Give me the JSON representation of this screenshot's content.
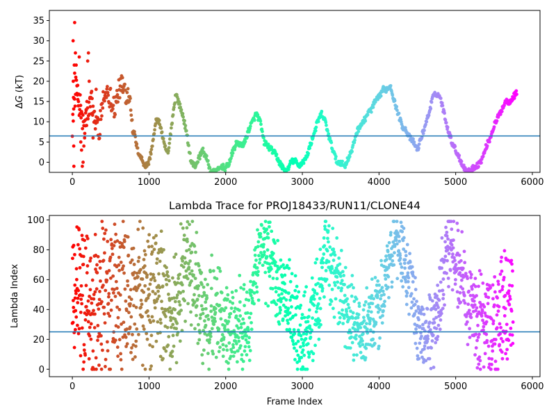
{
  "chart_data": [
    {
      "type": "scatter",
      "title": "",
      "xlabel": "",
      "ylabel_italic": "G",
      "ylabel_prefix": "Δ",
      "ylabel_suffix": " (kT)",
      "xlim": [
        -300,
        6100
      ],
      "ylim": [
        -2.5,
        37.5
      ],
      "xticks": [
        0,
        1000,
        2000,
        3000,
        4000,
        5000,
        6000
      ],
      "yticks": [
        0,
        5,
        10,
        15,
        20,
        25,
        30,
        35
      ],
      "hline": 6.5,
      "color_map": "rainbow (colored by frame index: red at 0 → purple at end)",
      "frames": 5800,
      "trace_keypoints": [
        [
          0,
          10
        ],
        [
          50,
          18
        ],
        [
          100,
          14
        ],
        [
          150,
          8
        ],
        [
          200,
          12
        ],
        [
          250,
          15
        ],
        [
          300,
          10
        ],
        [
          350,
          8
        ],
        [
          400,
          15
        ],
        [
          450,
          18
        ],
        [
          500,
          16
        ],
        [
          550,
          14
        ],
        [
          600,
          17
        ],
        [
          650,
          19
        ],
        [
          700,
          17
        ],
        [
          750,
          16
        ],
        [
          800,
          8
        ],
        [
          850,
          3
        ],
        [
          900,
          1
        ],
        [
          950,
          -1
        ],
        [
          1000,
          0
        ],
        [
          1050,
          5
        ],
        [
          1100,
          11
        ],
        [
          1150,
          9
        ],
        [
          1200,
          4
        ],
        [
          1250,
          2
        ],
        [
          1300,
          10
        ],
        [
          1350,
          17
        ],
        [
          1400,
          14
        ],
        [
          1450,
          11
        ],
        [
          1500,
          6
        ],
        [
          1550,
          0
        ],
        [
          1600,
          -1
        ],
        [
          1650,
          1
        ],
        [
          1700,
          3
        ],
        [
          1750,
          1
        ],
        [
          1800,
          -2
        ],
        [
          1850,
          -2.5
        ],
        [
          1900,
          -2
        ],
        [
          1950,
          -1
        ],
        [
          2000,
          -1.5
        ],
        [
          2050,
          0
        ],
        [
          2100,
          3
        ],
        [
          2150,
          5
        ],
        [
          2200,
          4
        ],
        [
          2250,
          5
        ],
        [
          2300,
          8
        ],
        [
          2350,
          10
        ],
        [
          2400,
          12
        ],
        [
          2450,
          10
        ],
        [
          2500,
          5
        ],
        [
          2550,
          4
        ],
        [
          2600,
          3
        ],
        [
          2650,
          2
        ],
        [
          2700,
          0
        ],
        [
          2750,
          -1.5
        ],
        [
          2800,
          -2.5
        ],
        [
          2850,
          0
        ],
        [
          2900,
          0.5
        ],
        [
          2950,
          -1
        ],
        [
          3000,
          0
        ],
        [
          3050,
          1
        ],
        [
          3100,
          4
        ],
        [
          3150,
          7
        ],
        [
          3200,
          10
        ],
        [
          3250,
          12
        ],
        [
          3300,
          10
        ],
        [
          3350,
          6
        ],
        [
          3400,
          3
        ],
        [
          3450,
          0
        ],
        [
          3500,
          0
        ],
        [
          3550,
          -1
        ],
        [
          3600,
          1
        ],
        [
          3650,
          3
        ],
        [
          3700,
          7
        ],
        [
          3750,
          9
        ],
        [
          3800,
          10
        ],
        [
          3850,
          12
        ],
        [
          3900,
          13
        ],
        [
          3950,
          15
        ],
        [
          4000,
          16
        ],
        [
          4050,
          18
        ],
        [
          4100,
          18
        ],
        [
          4150,
          19
        ],
        [
          4200,
          15
        ],
        [
          4250,
          12
        ],
        [
          4300,
          9
        ],
        [
          4350,
          8
        ],
        [
          4400,
          6
        ],
        [
          4450,
          5
        ],
        [
          4500,
          3
        ],
        [
          4550,
          6
        ],
        [
          4600,
          9
        ],
        [
          4650,
          12
        ],
        [
          4700,
          16
        ],
        [
          4750,
          17
        ],
        [
          4800,
          16
        ],
        [
          4850,
          12
        ],
        [
          4900,
          8
        ],
        [
          4950,
          5
        ],
        [
          5000,
          3
        ],
        [
          5050,
          1
        ],
        [
          5100,
          -1
        ],
        [
          5150,
          -2.5
        ],
        [
          5200,
          -2
        ],
        [
          5250,
          -1
        ],
        [
          5300,
          -0.5
        ],
        [
          5350,
          1
        ],
        [
          5400,
          4
        ],
        [
          5450,
          6
        ],
        [
          5500,
          9
        ],
        [
          5550,
          11
        ],
        [
          5600,
          13
        ],
        [
          5650,
          15
        ],
        [
          5700,
          15
        ],
        [
          5750,
          16
        ],
        [
          5800,
          17.5
        ]
      ],
      "early_scatter_keypoints": [
        [
          10,
          30
        ],
        [
          12,
          20
        ],
        [
          15,
          16
        ],
        [
          18,
          4
        ],
        [
          20,
          -1
        ],
        [
          25,
          24
        ],
        [
          30,
          34.5
        ],
        [
          30,
          22
        ],
        [
          40,
          27
        ],
        [
          45,
          21
        ],
        [
          50,
          24
        ],
        [
          60,
          17
        ],
        [
          70,
          19
        ],
        [
          80,
          15
        ],
        [
          90,
          26
        ],
        [
          100,
          12
        ],
        [
          110,
          5
        ],
        [
          120,
          3
        ],
        [
          130,
          -1
        ],
        [
          140,
          0
        ],
        [
          150,
          4
        ],
        [
          160,
          6
        ],
        [
          170,
          9
        ],
        [
          180,
          13
        ],
        [
          190,
          15
        ],
        [
          200,
          25
        ],
        [
          210,
          27
        ],
        [
          220,
          20
        ],
        [
          230,
          16
        ],
        [
          250,
          12
        ],
        [
          270,
          6
        ],
        [
          290,
          10
        ],
        [
          310,
          18
        ],
        [
          330,
          11
        ]
      ]
    },
    {
      "type": "scatter",
      "title": "Lambda Trace for PROJ18433/RUN11/CLONE44",
      "xlabel": "Frame Index",
      "ylabel": "Lambda Index",
      "xlim": [
        -300,
        6100
      ],
      "ylim": [
        -5,
        103
      ],
      "xticks": [
        0,
        1000,
        2000,
        3000,
        4000,
        5000,
        6000
      ],
      "yticks": [
        0,
        20,
        40,
        60,
        80,
        100
      ],
      "hline": 25,
      "color_map": "rainbow (colored by frame index: red at 0 → purple at end)",
      "frames": 5800,
      "lambda_center_keypoints": [
        [
          0,
          50
        ],
        [
          300,
          50
        ],
        [
          600,
          50
        ],
        [
          900,
          45
        ],
        [
          1100,
          55
        ],
        [
          1300,
          30
        ],
        [
          1500,
          75
        ],
        [
          1700,
          40
        ],
        [
          1900,
          35
        ],
        [
          2100,
          25
        ],
        [
          2300,
          30
        ],
        [
          2450,
          80
        ],
        [
          2600,
          70
        ],
        [
          2800,
          45
        ],
        [
          3000,
          20
        ],
        [
          3200,
          40
        ],
        [
          3300,
          80
        ],
        [
          3450,
          60
        ],
        [
          3600,
          35
        ],
        [
          3800,
          25
        ],
        [
          4000,
          40
        ],
        [
          4200,
          85
        ],
        [
          4350,
          70
        ],
        [
          4500,
          30
        ],
        [
          4700,
          25
        ],
        [
          4900,
          85
        ],
        [
          5000,
          75
        ],
        [
          5150,
          45
        ],
        [
          5300,
          30
        ],
        [
          5500,
          25
        ],
        [
          5700,
          50
        ],
        [
          5800,
          45
        ]
      ],
      "lambda_spread_keypoints": [
        [
          0,
          50
        ],
        [
          900,
          50
        ],
        [
          1300,
          35
        ],
        [
          2000,
          30
        ],
        [
          2400,
          25
        ],
        [
          3000,
          30
        ],
        [
          4200,
          20
        ],
        [
          5000,
          25
        ],
        [
          5800,
          40
        ]
      ]
    }
  ]
}
